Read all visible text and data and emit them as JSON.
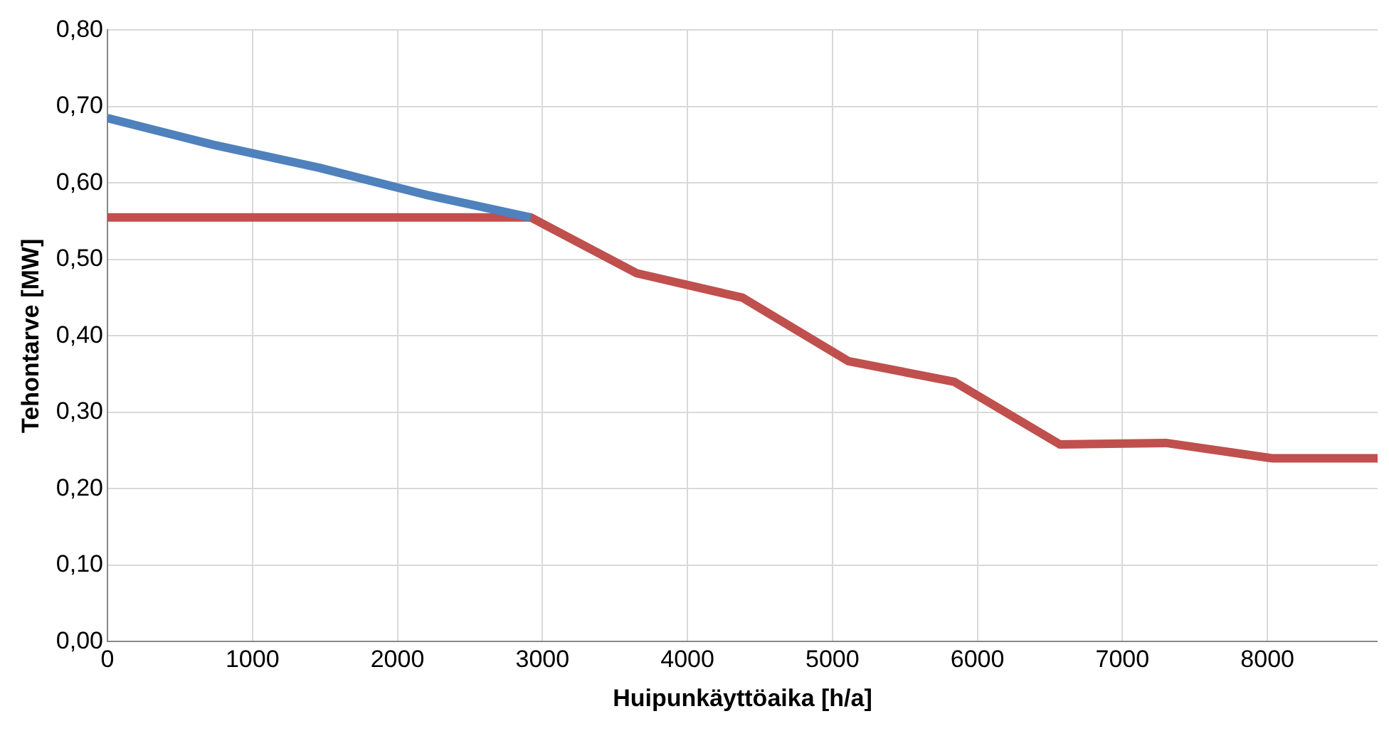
{
  "chart_data": {
    "type": "line",
    "xlabel": "Huipunkäyttöaika [h/a]",
    "ylabel": "Tehontarve [MW]",
    "x": [
      0,
      730,
      1460,
      2190,
      2920,
      3650,
      4380,
      5110,
      5840,
      6570,
      7300,
      8030,
      8760
    ],
    "series": [
      {
        "color": "#4f81bd",
        "values": [
          0.685,
          0.65,
          0.62,
          0.585,
          0.555,
          null,
          null,
          null,
          null,
          null,
          null,
          null,
          null
        ]
      },
      {
        "color": "#c0504d",
        "values": [
          0.555,
          0.555,
          0.555,
          0.555,
          0.555,
          0.482,
          0.45,
          0.367,
          0.34,
          0.258,
          0.26,
          0.24,
          0.24
        ]
      }
    ],
    "xlim": [
      0,
      8760
    ],
    "xticks": [
      0,
      1000,
      2000,
      3000,
      4000,
      5000,
      6000,
      7000,
      8000
    ],
    "ylim": [
      0,
      0.8
    ],
    "yticks": [
      {
        "value": 0,
        "label": "0,00"
      },
      {
        "value": 0.1,
        "label": "0,10"
      },
      {
        "value": 0.2,
        "label": "0,20"
      },
      {
        "value": 0.3,
        "label": "0,30"
      },
      {
        "value": 0.4,
        "label": "0,40"
      },
      {
        "value": 0.5,
        "label": "0,50"
      },
      {
        "value": 0.6,
        "label": "0,60"
      },
      {
        "value": 0.7,
        "label": "0,70"
      },
      {
        "value": 0.8,
        "label": "0,80"
      }
    ],
    "grid": true,
    "legend": false,
    "marker": "none",
    "line_style": "solid"
  }
}
